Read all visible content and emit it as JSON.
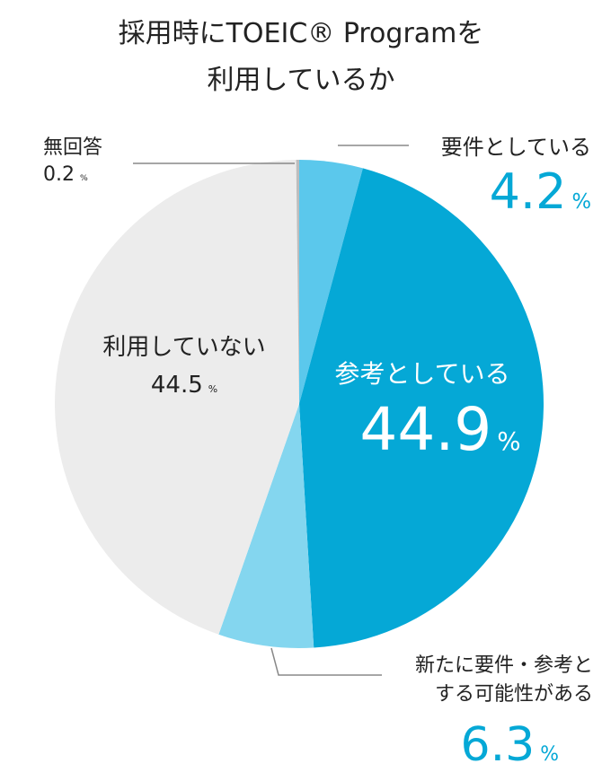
{
  "chart_data": {
    "type": "pie",
    "title_lines": [
      "採用時にTOEIC® Programを",
      "利用しているか"
    ],
    "categories": [
      "要件としている",
      "参考としている",
      "新たに要件・参考とする可能性がある",
      "利用していない",
      "無回答"
    ],
    "values": [
      4.2,
      44.9,
      6.3,
      44.5,
      0.2
    ],
    "value_unit": "%",
    "colors": [
      "#5bc8ec",
      "#05a8d6",
      "#84d6ef",
      "#ececec",
      "#bdbdbd"
    ]
  }
}
